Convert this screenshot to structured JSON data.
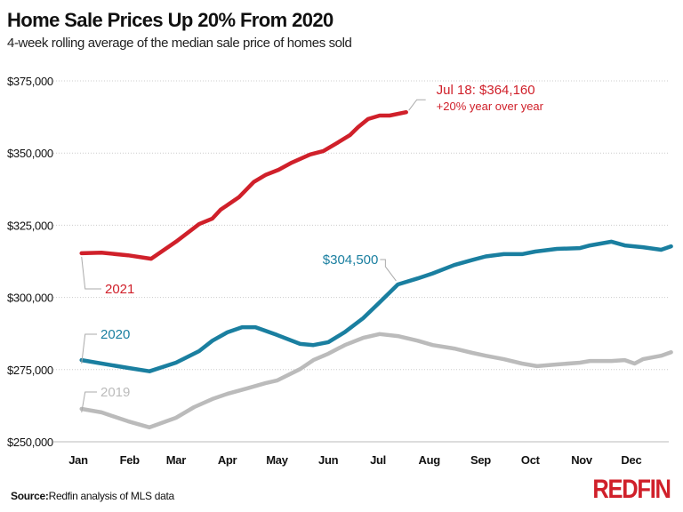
{
  "title": "Home Sale Prices Up 20% From 2020",
  "subtitle": "4-week rolling average of the median sale price of homes sold",
  "source_label": "Source:",
  "source_text": "Redfin analysis of MLS data",
  "logo": "REDFIN",
  "chart_data": {
    "type": "line",
    "title": "Home Sale Prices Up 20% From 2020",
    "subtitle": "4-week rolling average of the median sale price of homes sold",
    "xlabel": "",
    "ylabel": "",
    "ylim": [
      250000,
      375000
    ],
    "yticks": [
      250000,
      275000,
      300000,
      325000,
      350000,
      375000
    ],
    "ytick_labels": [
      "$250,000",
      "$275,000",
      "$300,000",
      "$325,000",
      "$350,000",
      "$375,000"
    ],
    "xtick_labels": [
      "Jan",
      "Feb",
      "Mar",
      "Apr",
      "May",
      "Jun",
      "Jul",
      "Aug",
      "Sep",
      "Oct",
      "Nov",
      "Dec"
    ],
    "grid": "horizontal dotted",
    "legend": "none (direct labels)",
    "series": [
      {
        "name": "2019",
        "color": "#bbbbbb",
        "points": [
          [
            "01-03",
            261400
          ],
          [
            "01-15",
            260200
          ],
          [
            "01-31",
            257100
          ],
          [
            "02-13",
            255000
          ],
          [
            "03-01",
            258300
          ],
          [
            "03-12",
            262000
          ],
          [
            "03-23",
            264800
          ],
          [
            "04-01",
            266600
          ],
          [
            "04-13",
            268500
          ],
          [
            "04-24",
            270300
          ],
          [
            "05-01",
            271200
          ],
          [
            "05-15",
            275200
          ],
          [
            "05-23",
            278300
          ],
          [
            "06-01",
            280500
          ],
          [
            "06-11",
            283500
          ],
          [
            "06-22",
            286000
          ],
          [
            "07-02",
            287300
          ],
          [
            "07-13",
            286600
          ],
          [
            "07-25",
            285000
          ],
          [
            "08-03",
            283500
          ],
          [
            "08-16",
            282300
          ],
          [
            "08-27",
            280800
          ],
          [
            "09-04",
            279800
          ],
          [
            "09-15",
            278600
          ],
          [
            "09-26",
            277100
          ],
          [
            "10-05",
            276200
          ],
          [
            "10-17",
            276800
          ],
          [
            "10-31",
            277400
          ],
          [
            "11-06",
            278000
          ],
          [
            "11-19",
            278000
          ],
          [
            "11-27",
            278300
          ],
          [
            "12-03",
            277100
          ],
          [
            "12-08",
            278600
          ],
          [
            "12-19",
            279800
          ],
          [
            "12-25",
            281000
          ]
        ]
      },
      {
        "name": "2020",
        "color": "#1a7fa0",
        "points": [
          [
            "01-03",
            278300
          ],
          [
            "01-31",
            275600
          ],
          [
            "02-13",
            274400
          ],
          [
            "03-01",
            277400
          ],
          [
            "03-15",
            281400
          ],
          [
            "03-23",
            285000
          ],
          [
            "04-01",
            287900
          ],
          [
            "04-10",
            289700
          ],
          [
            "04-18",
            289700
          ],
          [
            "05-01",
            287000
          ],
          [
            "05-15",
            283900
          ],
          [
            "05-23",
            283500
          ],
          [
            "06-01",
            284500
          ],
          [
            "06-11",
            288000
          ],
          [
            "06-22",
            292800
          ],
          [
            "07-02",
            298300
          ],
          [
            "07-13",
            304500
          ],
          [
            "07-25",
            306600
          ],
          [
            "08-03",
            308300
          ],
          [
            "08-16",
            311200
          ],
          [
            "08-27",
            313000
          ],
          [
            "09-04",
            314200
          ],
          [
            "09-15",
            315000
          ],
          [
            "09-26",
            315000
          ],
          [
            "10-04",
            315900
          ],
          [
            "10-17",
            316800
          ],
          [
            "10-31",
            317100
          ],
          [
            "11-06",
            318000
          ],
          [
            "11-19",
            319300
          ],
          [
            "11-27",
            318000
          ],
          [
            "12-08",
            317400
          ],
          [
            "12-19",
            316500
          ],
          [
            "12-25",
            317700
          ]
        ]
      },
      {
        "name": "2021",
        "color": "#d0202a",
        "points": [
          [
            "01-03",
            315300
          ],
          [
            "01-15",
            315500
          ],
          [
            "01-31",
            314600
          ],
          [
            "02-14",
            313400
          ],
          [
            "03-01",
            319300
          ],
          [
            "03-15",
            325400
          ],
          [
            "03-23",
            327300
          ],
          [
            "03-28",
            330400
          ],
          [
            "04-08",
            334700
          ],
          [
            "04-17",
            340000
          ],
          [
            "04-24",
            342400
          ],
          [
            "05-02",
            344200
          ],
          [
            "05-10",
            346700
          ],
          [
            "05-21",
            349500
          ],
          [
            "05-29",
            350700
          ],
          [
            "06-06",
            353400
          ],
          [
            "06-14",
            356200
          ],
          [
            "06-19",
            359000
          ],
          [
            "06-25",
            361800
          ],
          [
            "07-02",
            363000
          ],
          [
            "07-08",
            363000
          ],
          [
            "07-18",
            364160
          ]
        ]
      }
    ],
    "annotations": [
      {
        "series": "2021",
        "text": "2021"
      },
      {
        "series": "2020",
        "text": "2020"
      },
      {
        "series": "2019",
        "text": "2019"
      },
      {
        "series": "2020",
        "date": "07-13",
        "text": "$304,500"
      },
      {
        "series": "2021",
        "date": "07-18",
        "text": "Jul 18: $364,160",
        "text2": "+20% year over year"
      }
    ]
  }
}
